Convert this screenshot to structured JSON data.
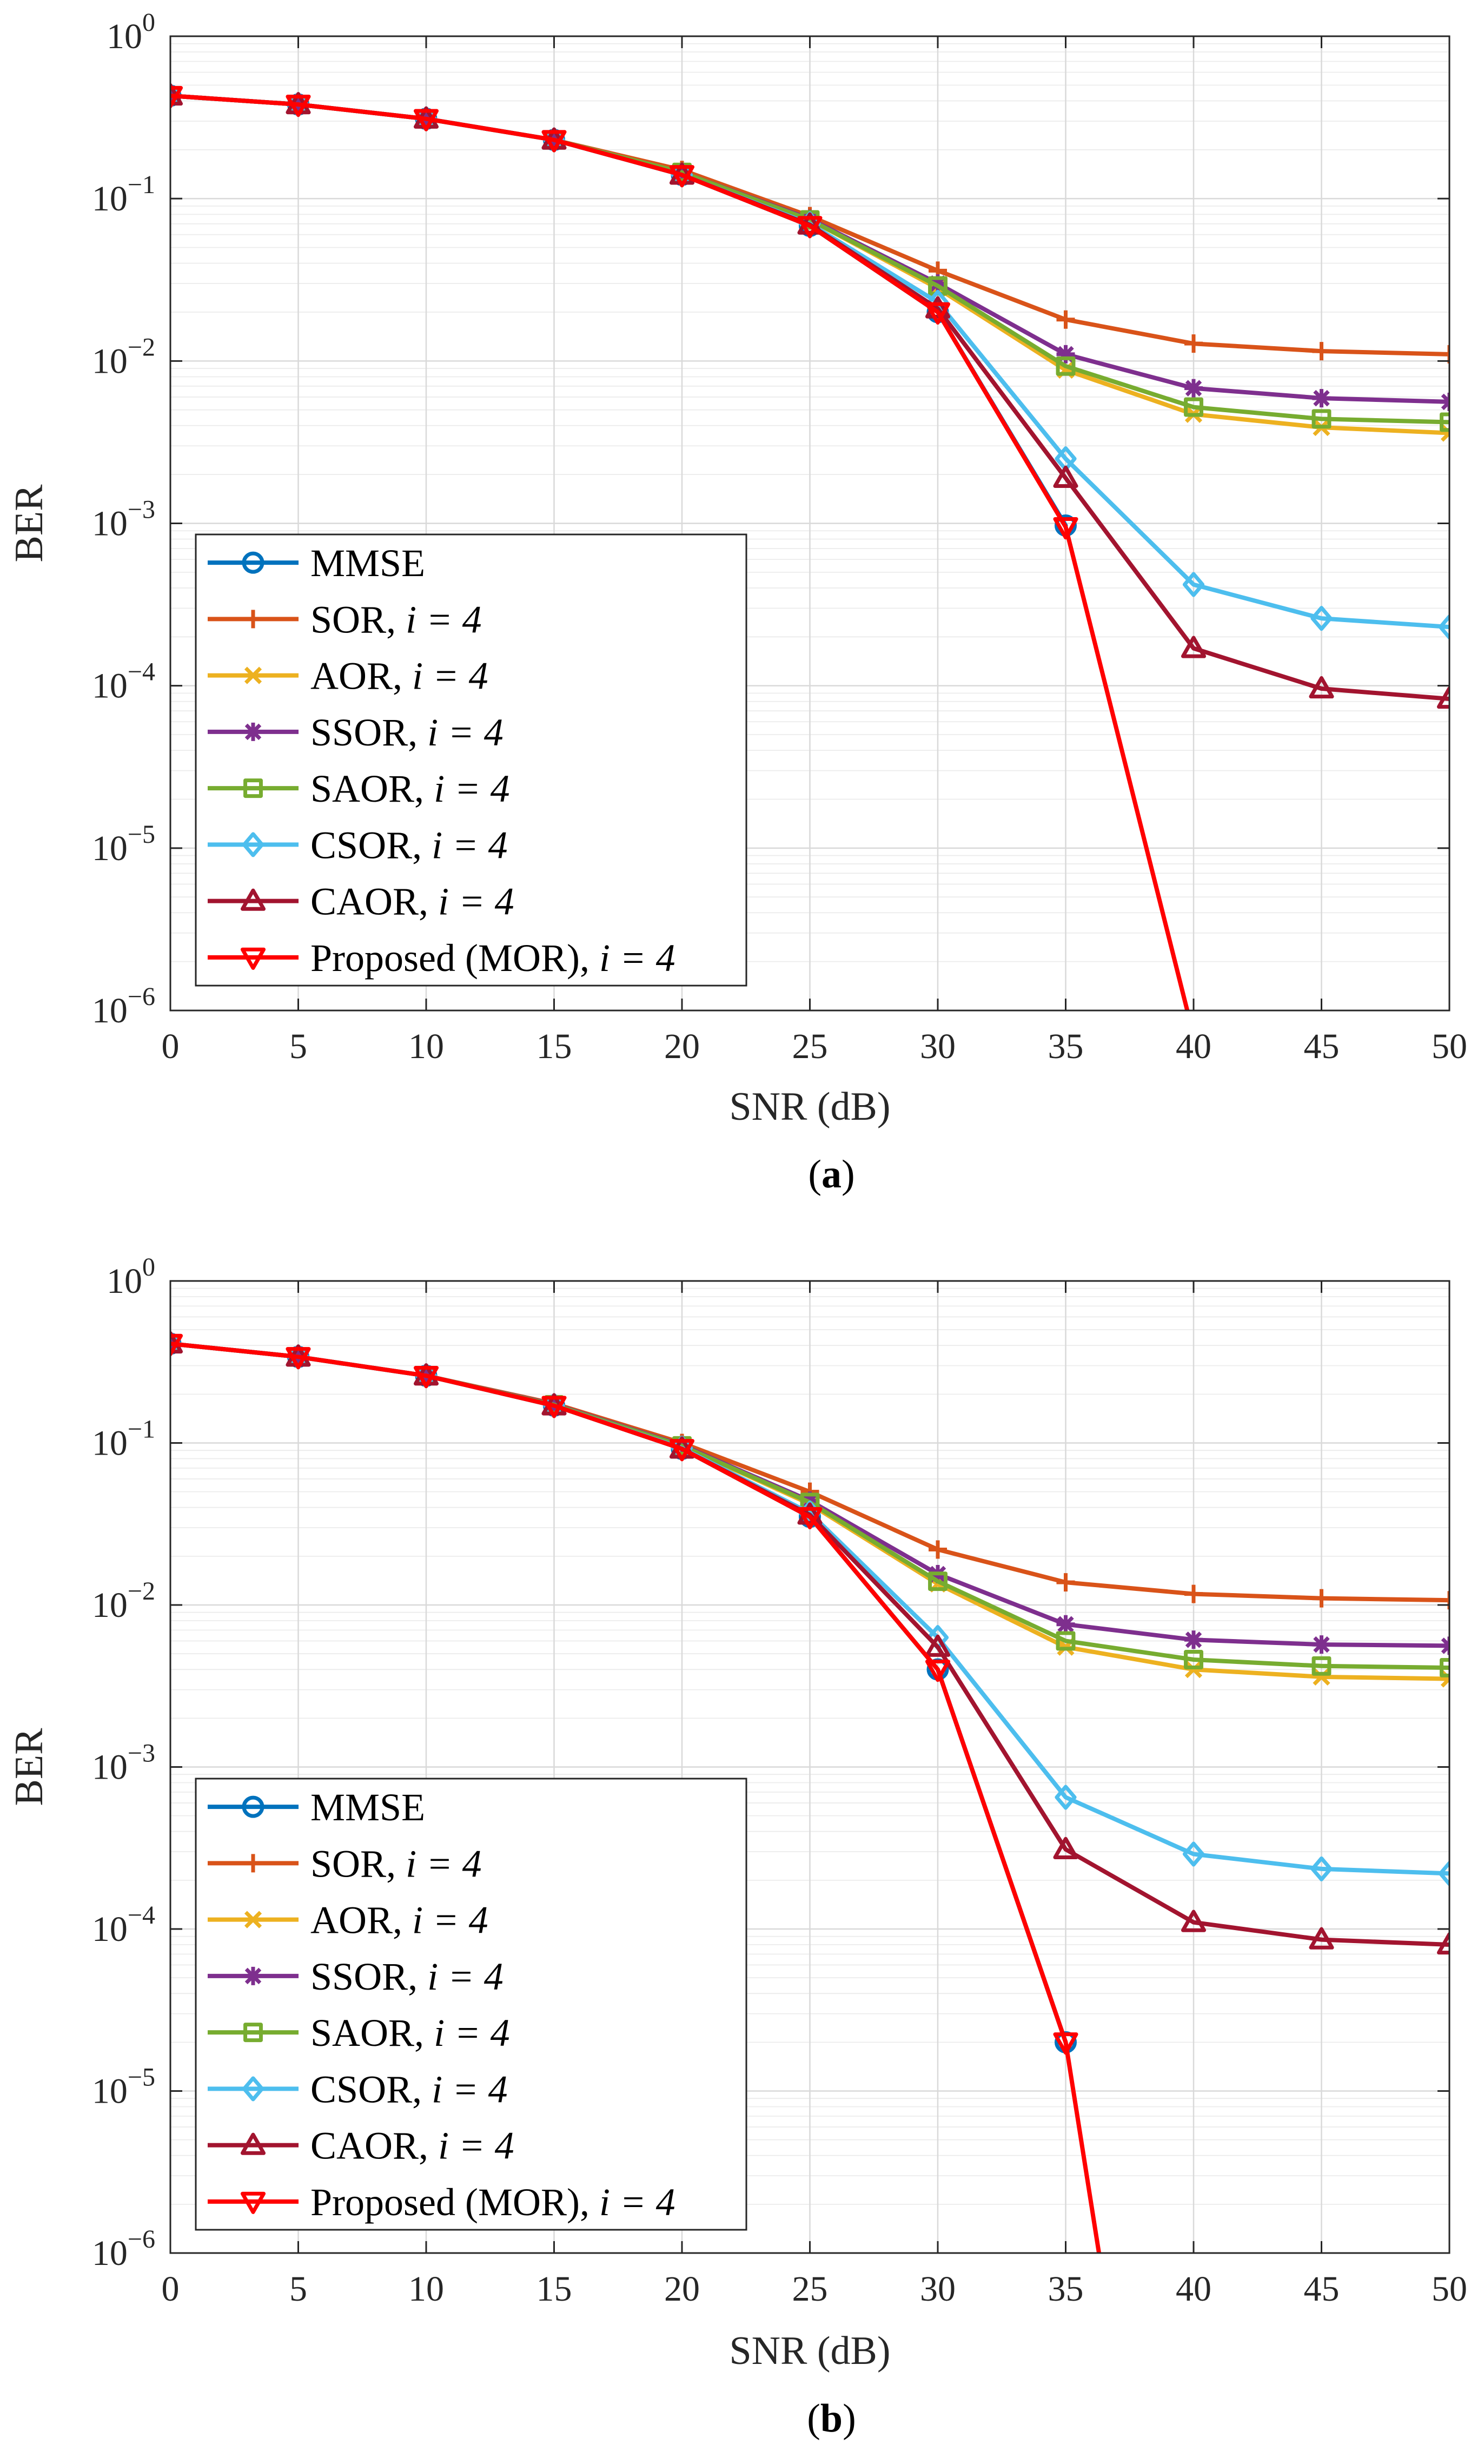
{
  "chart_data": [
    {
      "type": "line",
      "caption": "a",
      "xlabel": "SNR (dB)",
      "ylabel": "BER",
      "xlim": [
        0,
        50
      ],
      "ylim": [
        1e-06,
        1
      ],
      "yscale": "log",
      "grid": true,
      "legend_position": "bottom-left",
      "x": [
        0,
        5,
        10,
        15,
        20,
        25,
        30,
        35,
        40,
        45,
        50
      ],
      "xticks": [
        0,
        5,
        10,
        15,
        20,
        25,
        30,
        35,
        40,
        45,
        50
      ],
      "yticks": [
        0,
        -1,
        -2,
        -3,
        -4,
        -5,
        -6
      ],
      "series": [
        {
          "name": "MMSE",
          "italic_suffix": "",
          "marker": "circle",
          "color": "#0072BD",
          "x": [
            0,
            5,
            10,
            15,
            20,
            25,
            30,
            35
          ],
          "values": [
            0.43,
            0.38,
            0.31,
            0.23,
            0.14,
            0.068,
            0.02,
            0.00097
          ]
        },
        {
          "name": "SOR, ",
          "italic_suffix": "i = 4",
          "marker": "plus",
          "color": "#D95319",
          "x": [
            0,
            5,
            10,
            15,
            20,
            25,
            30,
            35,
            40,
            45,
            50
          ],
          "values": [
            0.43,
            0.38,
            0.31,
            0.23,
            0.15,
            0.078,
            0.036,
            0.018,
            0.0128,
            0.0115,
            0.011
          ]
        },
        {
          "name": "AOR, ",
          "italic_suffix": "i = 4",
          "marker": "x",
          "color": "#EDB120",
          "x": [
            0,
            5,
            10,
            15,
            20,
            25,
            30,
            35,
            40,
            45,
            50
          ],
          "values": [
            0.43,
            0.38,
            0.31,
            0.23,
            0.145,
            0.074,
            0.028,
            0.0088,
            0.0047,
            0.0039,
            0.0036
          ]
        },
        {
          "name": "SSOR, ",
          "italic_suffix": "i = 4",
          "marker": "asterisk",
          "color": "#7E2F8E",
          "x": [
            0,
            5,
            10,
            15,
            20,
            25,
            30,
            35,
            40,
            45,
            50
          ],
          "values": [
            0.43,
            0.38,
            0.31,
            0.23,
            0.145,
            0.075,
            0.03,
            0.011,
            0.0068,
            0.0059,
            0.0056
          ]
        },
        {
          "name": "SAOR, ",
          "italic_suffix": "i = 4",
          "marker": "square",
          "color": "#77AC30",
          "x": [
            0,
            5,
            10,
            15,
            20,
            25,
            30,
            35,
            40,
            45,
            50
          ],
          "values": [
            0.43,
            0.38,
            0.31,
            0.23,
            0.145,
            0.074,
            0.029,
            0.0093,
            0.0052,
            0.0044,
            0.0042
          ]
        },
        {
          "name": "CSOR, ",
          "italic_suffix": "i = 4",
          "marker": "diamond",
          "color": "#4DBEEE",
          "x": [
            0,
            5,
            10,
            15,
            20,
            25,
            30,
            35,
            40,
            45,
            50
          ],
          "values": [
            0.43,
            0.38,
            0.31,
            0.23,
            0.14,
            0.07,
            0.023,
            0.0025,
            0.00042,
            0.00026,
            0.00023
          ]
        },
        {
          "name": "CAOR, ",
          "italic_suffix": "i = 4",
          "marker": "triangle-up",
          "color": "#A2142F",
          "x": [
            0,
            5,
            10,
            15,
            20,
            25,
            30,
            35,
            40,
            45,
            50
          ],
          "values": [
            0.43,
            0.38,
            0.31,
            0.23,
            0.14,
            0.069,
            0.021,
            0.0019,
            0.00017,
            9.6e-05,
            8.3e-05
          ]
        },
        {
          "name": "Proposed (MOR), ",
          "italic_suffix": "i = 4",
          "marker": "triangle-down",
          "color": "#FF0000",
          "x": [
            0,
            5,
            10,
            15,
            20,
            25,
            30,
            35,
            40
          ],
          "values": [
            0.43,
            0.38,
            0.31,
            0.23,
            0.14,
            0.068,
            0.02,
            0.00095,
            7e-07
          ]
        }
      ]
    },
    {
      "type": "line",
      "caption": "b",
      "xlabel": "SNR (dB)",
      "ylabel": "BER",
      "xlim": [
        0,
        50
      ],
      "ylim": [
        1e-06,
        1
      ],
      "yscale": "log",
      "grid": true,
      "legend_position": "bottom-left",
      "x": [
        0,
        5,
        10,
        15,
        20,
        25,
        30,
        35,
        40,
        45,
        50
      ],
      "xticks": [
        0,
        5,
        10,
        15,
        20,
        25,
        30,
        35,
        40,
        45,
        50
      ],
      "yticks": [
        0,
        -1,
        -2,
        -3,
        -4,
        -5,
        -6
      ],
      "series": [
        {
          "name": "MMSE",
          "italic_suffix": "",
          "marker": "circle",
          "color": "#0072BD",
          "x": [
            0,
            5,
            10,
            15,
            20,
            25,
            30,
            35
          ],
          "values": [
            0.41,
            0.34,
            0.26,
            0.17,
            0.092,
            0.035,
            0.004,
            2e-05
          ]
        },
        {
          "name": "SOR, ",
          "italic_suffix": "i = 4",
          "marker": "plus",
          "color": "#D95319",
          "x": [
            0,
            5,
            10,
            15,
            20,
            25,
            30,
            35,
            40,
            45,
            50
          ],
          "values": [
            0.41,
            0.34,
            0.26,
            0.175,
            0.1,
            0.05,
            0.022,
            0.0138,
            0.0117,
            0.011,
            0.0107
          ]
        },
        {
          "name": "AOR, ",
          "italic_suffix": "i = 4",
          "marker": "x",
          "color": "#EDB120",
          "x": [
            0,
            5,
            10,
            15,
            20,
            25,
            30,
            35,
            40,
            45,
            50
          ],
          "values": [
            0.41,
            0.34,
            0.26,
            0.172,
            0.096,
            0.042,
            0.0135,
            0.0055,
            0.004,
            0.0036,
            0.0035
          ]
        },
        {
          "name": "SSOR, ",
          "italic_suffix": "i = 4",
          "marker": "asterisk",
          "color": "#7E2F8E",
          "x": [
            0,
            5,
            10,
            15,
            20,
            25,
            30,
            35,
            40,
            45,
            50
          ],
          "values": [
            0.41,
            0.34,
            0.26,
            0.173,
            0.097,
            0.044,
            0.0155,
            0.0076,
            0.0061,
            0.0057,
            0.0056
          ]
        },
        {
          "name": "SAOR, ",
          "italic_suffix": "i = 4",
          "marker": "square",
          "color": "#77AC30",
          "x": [
            0,
            5,
            10,
            15,
            20,
            25,
            30,
            35,
            40,
            45,
            50
          ],
          "values": [
            0.41,
            0.34,
            0.26,
            0.172,
            0.096,
            0.043,
            0.014,
            0.006,
            0.0046,
            0.0042,
            0.0041
          ]
        },
        {
          "name": "CSOR, ",
          "italic_suffix": "i = 4",
          "marker": "diamond",
          "color": "#4DBEEE",
          "x": [
            0,
            5,
            10,
            15,
            20,
            25,
            30,
            35,
            40,
            45,
            50
          ],
          "values": [
            0.41,
            0.34,
            0.26,
            0.17,
            0.093,
            0.037,
            0.0063,
            0.00065,
            0.00029,
            0.000235,
            0.00022
          ]
        },
        {
          "name": "CAOR, ",
          "italic_suffix": "i = 4",
          "marker": "triangle-up",
          "color": "#A2142F",
          "x": [
            0,
            5,
            10,
            15,
            20,
            25,
            30,
            35,
            40,
            45,
            50
          ],
          "values": [
            0.41,
            0.34,
            0.26,
            0.17,
            0.092,
            0.036,
            0.0055,
            0.00031,
            0.00011,
            8.6e-05,
            8e-05
          ]
        },
        {
          "name": "Proposed (MOR), ",
          "italic_suffix": "i = 4",
          "marker": "triangle-down",
          "color": "#FF0000",
          "x": [
            0,
            5,
            10,
            15,
            20,
            25,
            30,
            35,
            37
          ],
          "values": [
            0.41,
            0.34,
            0.26,
            0.17,
            0.092,
            0.035,
            0.004,
            2e-05,
            2e-07
          ]
        }
      ]
    }
  ]
}
